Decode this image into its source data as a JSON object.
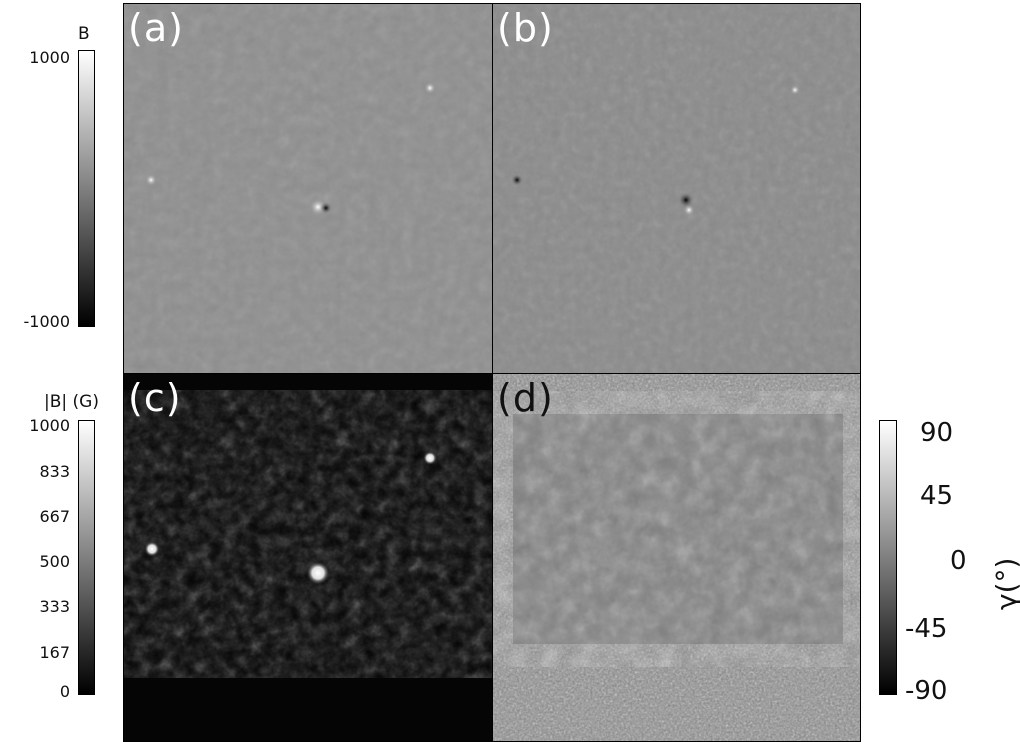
{
  "panels": [
    {
      "id": "a",
      "label": "(a)",
      "quantity": "B",
      "background": "#8e8e8e"
    },
    {
      "id": "b",
      "label": "(b)",
      "quantity": "B",
      "background": "#8a8a8a"
    },
    {
      "id": "c",
      "label": "(c)",
      "quantity": "|B|",
      "background": "#050505"
    },
    {
      "id": "d",
      "label": "(d)",
      "quantity": "γ",
      "background": "#7a7a7a"
    }
  ],
  "colorbars": {
    "top_left": {
      "title": "B",
      "ticks": [
        "1000",
        "-1000"
      ],
      "range": [
        -1000,
        1000
      ]
    },
    "bottom_left": {
      "title": "|B| (G)",
      "ticks": [
        "1000",
        "833",
        "667",
        "500",
        "333",
        "167",
        "0"
      ],
      "range": [
        0,
        1000
      ]
    },
    "right": {
      "title": "γ(°)",
      "ticks": [
        "90",
        "45",
        "0",
        "-45",
        "-90"
      ],
      "range": [
        -90,
        90
      ]
    }
  }
}
